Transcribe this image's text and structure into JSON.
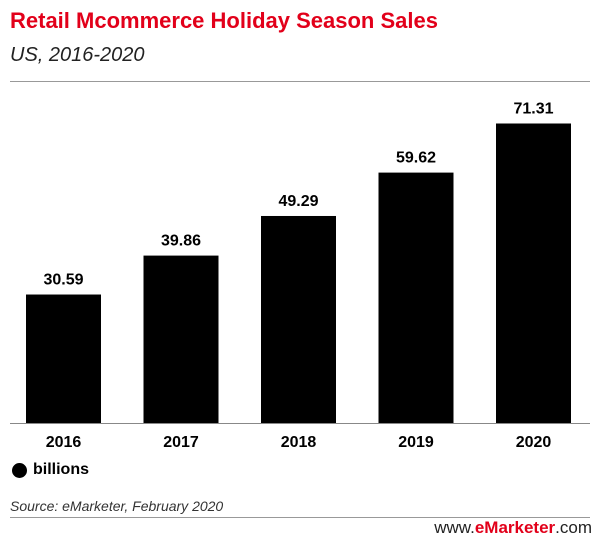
{
  "header": {
    "title": "Retail Mcommerce Holiday Season Sales",
    "subtitle": "US, 2016-2020"
  },
  "legend": {
    "label": "billions"
  },
  "footer": {
    "source": "Source: eMarketer, February 2020",
    "brand_prefix": "www.",
    "brand_main": "eMarketer",
    "brand_suffix": ".com"
  },
  "colors": {
    "bar": "#000000",
    "title": "#e2001a",
    "axis": "#888888"
  },
  "chart_data": {
    "type": "bar",
    "title": "Retail Mcommerce Holiday Season Sales",
    "subtitle": "US, 2016-2020",
    "categories": [
      "2016",
      "2017",
      "2018",
      "2019",
      "2020"
    ],
    "series": [
      {
        "name": "billions",
        "values": [
          30.59,
          39.86,
          49.29,
          59.62,
          71.31
        ]
      }
    ],
    "value_labels": [
      "30.59",
      "39.86",
      "49.29",
      "59.62",
      "71.31"
    ],
    "xlabel": "",
    "ylabel": "",
    "ylim": [
      0,
      80
    ],
    "grid": false,
    "legend_position": "bottom-left"
  }
}
